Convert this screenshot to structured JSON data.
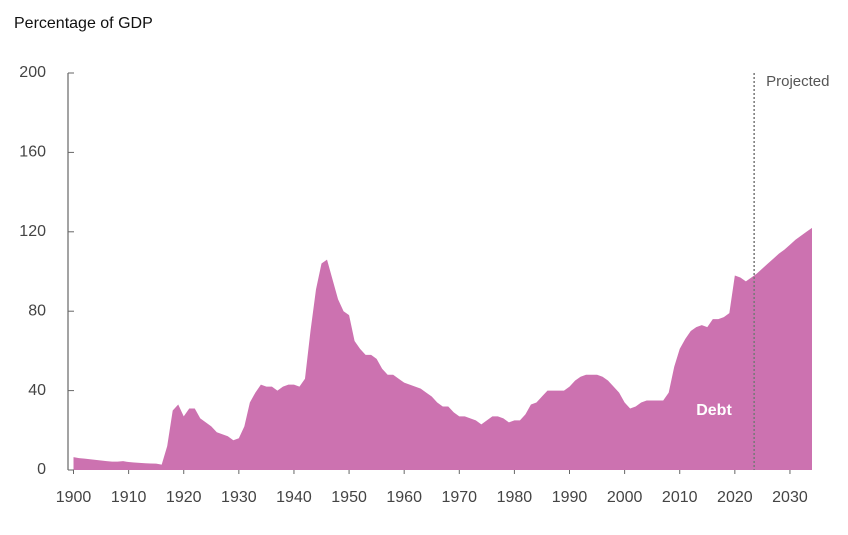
{
  "chart_data": {
    "type": "area",
    "title": "Percentage of GDP",
    "x": [
      1900,
      1901,
      1902,
      1903,
      1904,
      1905,
      1906,
      1907,
      1908,
      1909,
      1910,
      1911,
      1912,
      1913,
      1914,
      1915,
      1916,
      1917,
      1918,
      1919,
      1920,
      1921,
      1922,
      1923,
      1924,
      1925,
      1926,
      1927,
      1928,
      1929,
      1930,
      1931,
      1932,
      1933,
      1934,
      1935,
      1936,
      1937,
      1938,
      1939,
      1940,
      1941,
      1942,
      1943,
      1944,
      1945,
      1946,
      1947,
      1948,
      1949,
      1950,
      1951,
      1952,
      1953,
      1954,
      1955,
      1956,
      1957,
      1958,
      1959,
      1960,
      1961,
      1962,
      1963,
      1964,
      1965,
      1966,
      1967,
      1968,
      1969,
      1970,
      1971,
      1972,
      1973,
      1974,
      1975,
      1976,
      1977,
      1978,
      1979,
      1980,
      1981,
      1982,
      1983,
      1984,
      1985,
      1986,
      1987,
      1988,
      1989,
      1990,
      1991,
      1992,
      1993,
      1994,
      1995,
      1996,
      1997,
      1998,
      1999,
      2000,
      2001,
      2002,
      2003,
      2004,
      2005,
      2006,
      2007,
      2008,
      2009,
      2010,
      2011,
      2012,
      2013,
      2014,
      2015,
      2016,
      2017,
      2018,
      2019,
      2020,
      2021,
      2022,
      2023,
      2024,
      2025,
      2026,
      2027,
      2028,
      2029,
      2030,
      2031,
      2032,
      2033,
      2034
    ],
    "series": [
      {
        "name": "Debt",
        "color": "#cc72b0",
        "values": [
          6.5,
          6,
          5.7,
          5.4,
          5.1,
          4.8,
          4.5,
          4.2,
          4.2,
          4.5,
          4,
          3.8,
          3.6,
          3.4,
          3.3,
          3.2,
          2.7,
          12,
          30,
          33,
          27,
          31,
          31,
          26,
          24,
          22,
          19,
          18,
          17,
          15,
          16,
          22,
          34,
          39,
          43,
          42,
          42,
          40,
          42,
          43,
          43,
          42,
          46,
          70,
          91,
          104,
          106,
          96,
          86,
          80,
          78,
          65,
          61,
          58,
          58,
          56,
          51,
          48,
          48,
          46,
          44,
          43,
          42,
          41,
          39,
          37,
          34,
          32,
          32,
          29,
          27,
          27,
          26,
          25,
          23,
          25,
          27,
          27,
          26,
          24,
          25,
          25,
          28,
          33,
          34,
          37,
          40,
          40,
          40,
          40,
          42,
          45,
          47,
          48,
          48,
          48,
          47,
          45,
          42,
          39,
          34,
          31,
          32,
          34,
          35,
          35,
          35,
          35,
          39,
          52,
          61,
          66,
          70,
          72,
          73,
          72,
          76,
          76,
          77,
          79,
          98,
          97,
          95,
          97,
          99,
          101.5,
          104,
          106.5,
          109,
          111,
          113.5,
          116,
          118,
          120,
          122
        ]
      }
    ],
    "projected_from": 2023.5,
    "projection_label": "Projected",
    "xlim": [
      1899,
      2034
    ],
    "xticks": [
      1900,
      1910,
      1920,
      1930,
      1940,
      1950,
      1960,
      1970,
      1980,
      1990,
      2000,
      2010,
      2020,
      2030
    ],
    "ylim": [
      0,
      200
    ],
    "yticks": [
      0,
      40,
      80,
      120,
      160,
      200
    ],
    "grid": false
  }
}
